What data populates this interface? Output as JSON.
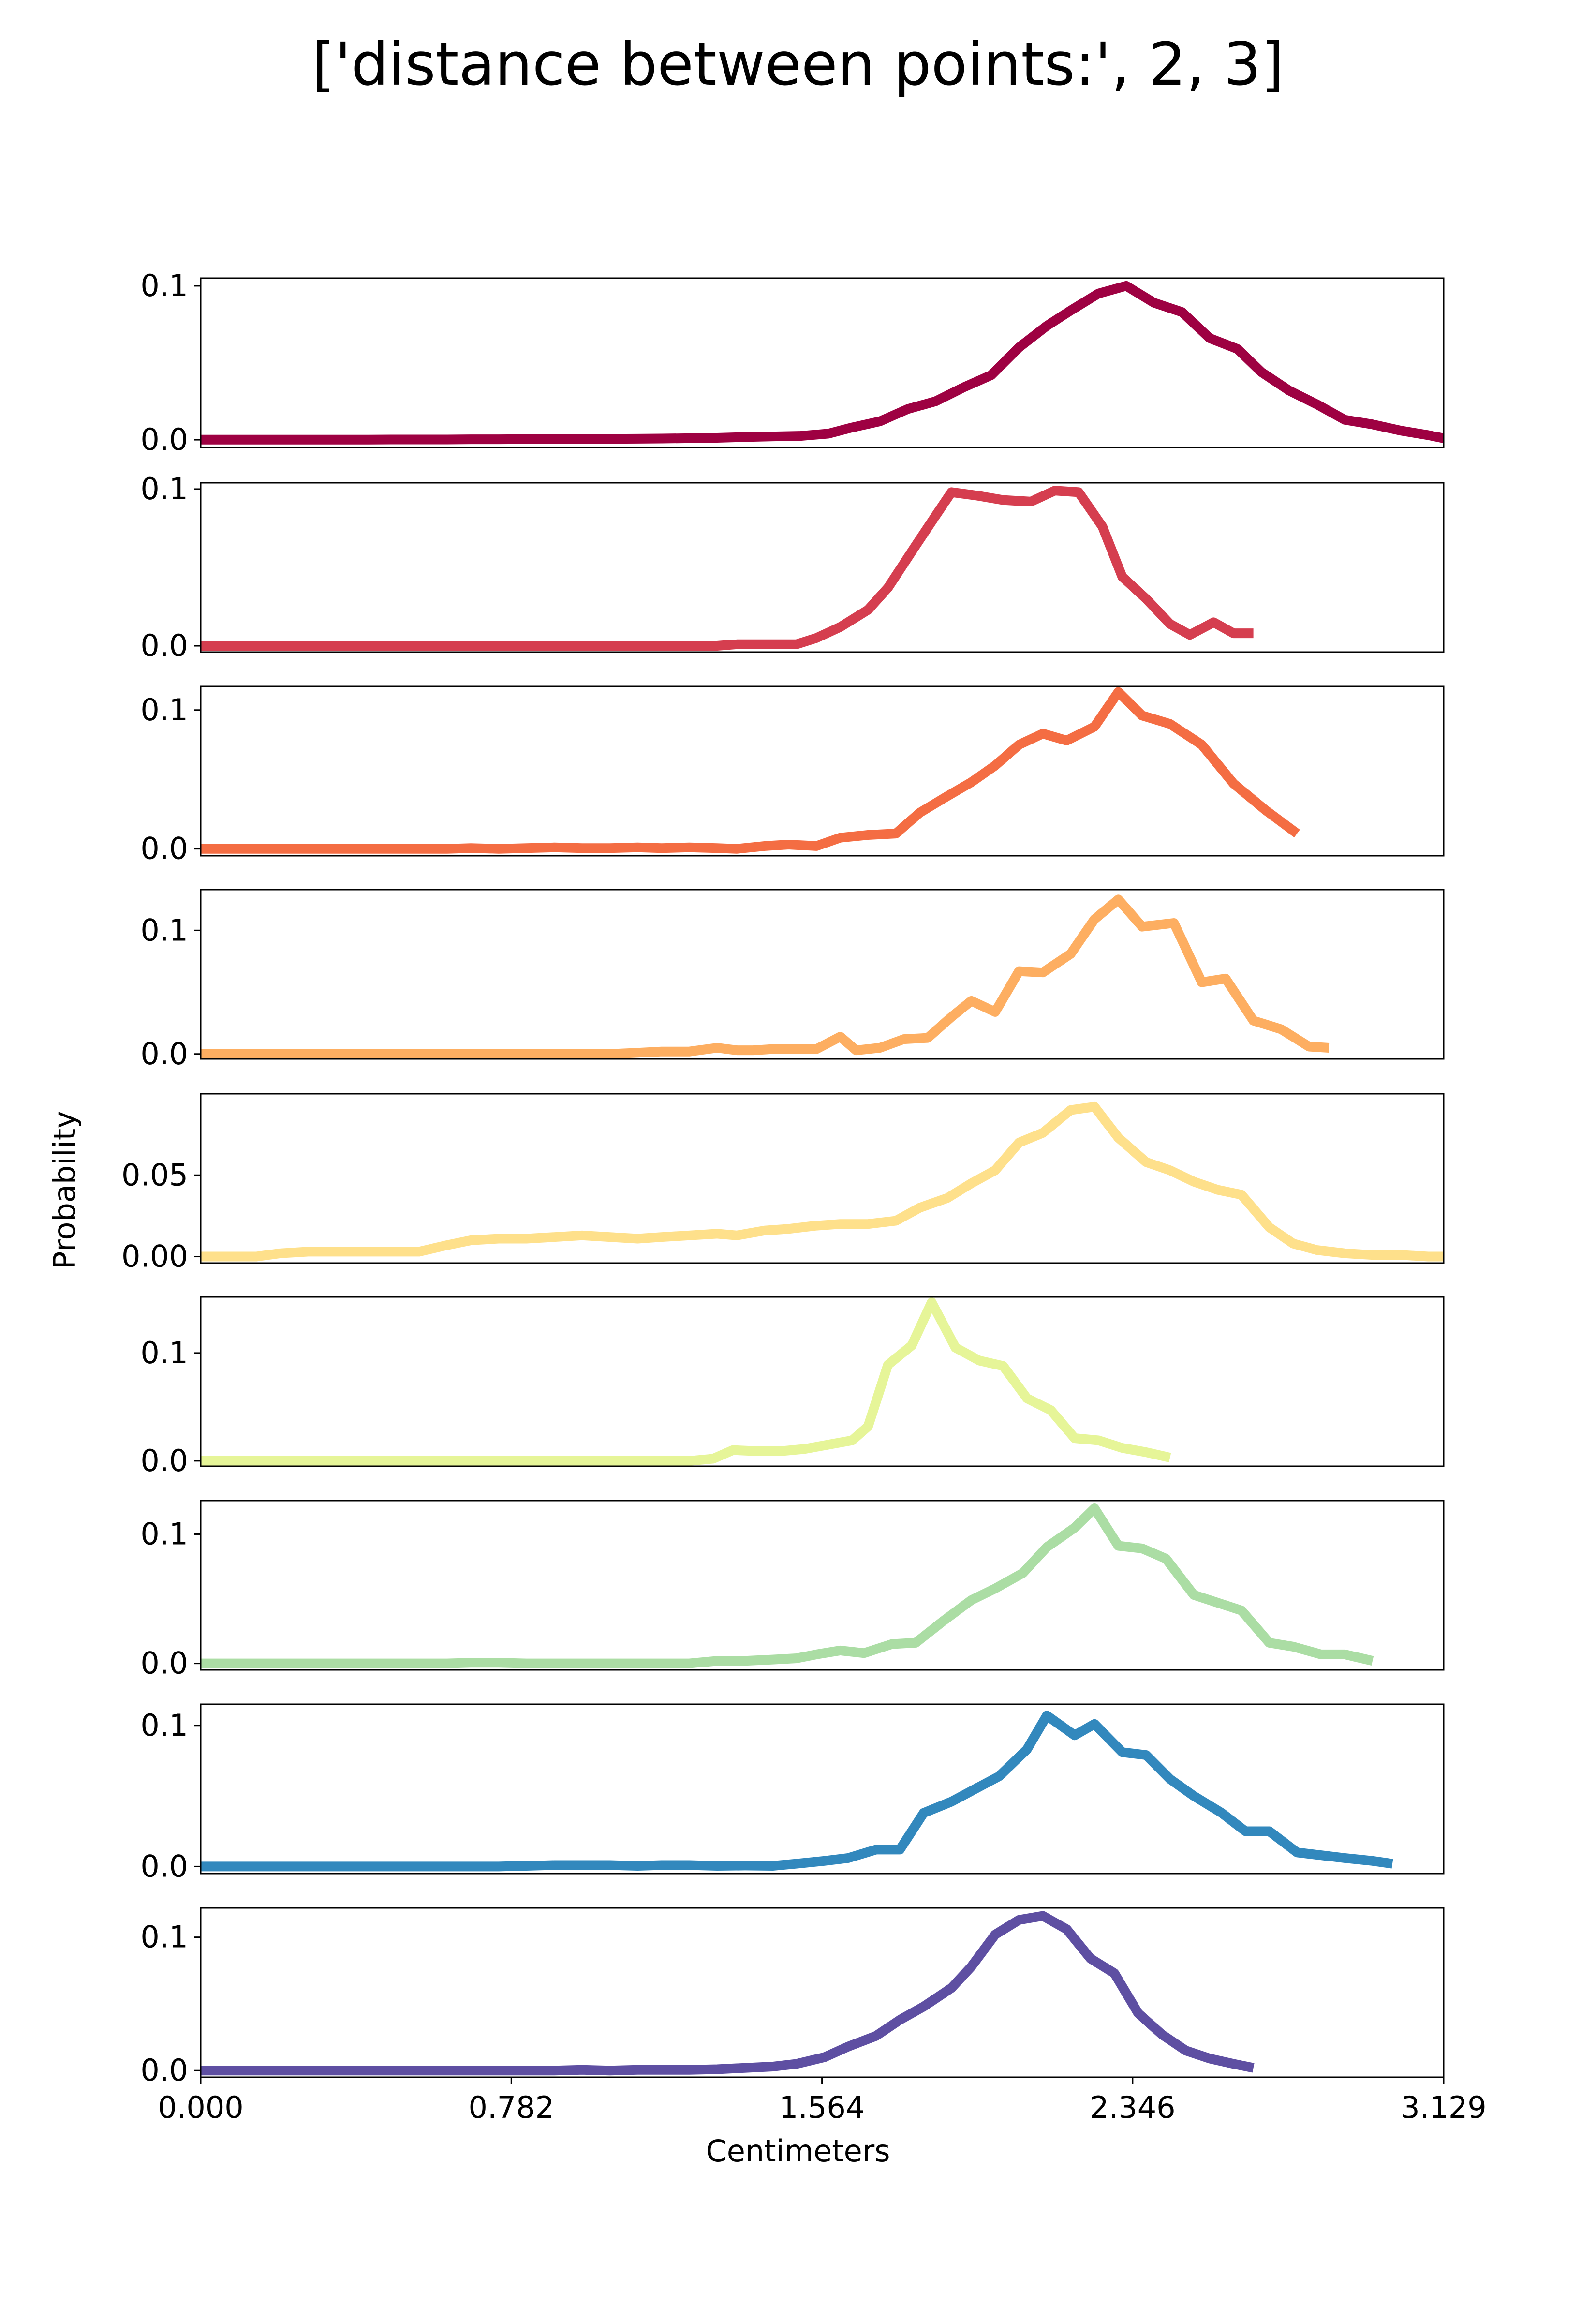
{
  "chart_data": {
    "type": "line",
    "title": "['distance between points:', 2, 3]",
    "xlabel": "Centimeters",
    "ylabel": "Probability",
    "xlim": [
      0,
      3.129
    ],
    "x_ticks": [
      "0.000",
      "0.782",
      "1.564",
      "2.346",
      "3.129"
    ],
    "grid": false,
    "panels": [
      {
        "color": "#9e0142",
        "ylim": [
          -0.005,
          0.105
        ],
        "y_ticks": [
          "0.0",
          "0.1"
        ],
        "x": [
          0,
          0.07,
          0.14,
          0.2,
          0.27,
          0.34,
          0.41,
          0.48,
          0.55,
          0.62,
          0.68,
          0.75,
          0.82,
          0.89,
          0.96,
          1.03,
          1.1,
          1.16,
          1.23,
          1.3,
          1.37,
          1.44,
          1.51,
          1.58,
          1.64,
          1.71,
          1.78,
          1.85,
          1.92,
          1.99,
          2.06,
          2.13,
          2.19,
          2.26,
          2.33,
          2.4,
          2.47,
          2.54,
          2.61,
          2.67,
          2.74,
          2.81,
          2.88,
          2.95,
          3.02,
          3.09,
          3.129
        ],
        "y": [
          0.0001,
          0.0001,
          0.0001,
          0.0001,
          0.0001,
          0.0001,
          0.0001,
          0.0002,
          0.0002,
          0.0002,
          0.0003,
          0.0003,
          0.0004,
          0.0005,
          0.0005,
          0.0006,
          0.0007,
          0.0008,
          0.001,
          0.0013,
          0.0018,
          0.0022,
          0.0025,
          0.004,
          0.008,
          0.012,
          0.02,
          0.025,
          0.034,
          0.042,
          0.06,
          0.074,
          0.084,
          0.095,
          0.1,
          0.089,
          0.083,
          0.066,
          0.059,
          0.044,
          0.032,
          0.023,
          0.013,
          0.01,
          0.006,
          0.003,
          0.001
        ]
      },
      {
        "color": "#d53e4f",
        "ylim": [
          -0.004,
          0.104
        ],
        "y_ticks": [
          "0.0",
          "0.1"
        ],
        "x": [
          0,
          0.07,
          0.14,
          0.2,
          0.27,
          0.34,
          0.41,
          0.48,
          0.55,
          0.62,
          0.68,
          0.75,
          0.82,
          0.89,
          0.96,
          1.03,
          1.1,
          1.16,
          1.23,
          1.3,
          1.35,
          1.42,
          1.5,
          1.55,
          1.61,
          1.68,
          1.73,
          1.8,
          1.85,
          1.89,
          1.95,
          2.02,
          2.09,
          2.15,
          2.21,
          2.27,
          2.32,
          2.38,
          2.44,
          2.49,
          2.55,
          2.6,
          2.65
        ],
        "y": [
          0,
          0,
          0,
          0,
          0,
          0,
          0,
          0,
          0,
          0,
          0,
          0,
          0,
          0,
          0,
          0,
          0,
          0,
          0,
          0,
          0.001,
          0.001,
          0.001,
          0.005,
          0.012,
          0.023,
          0.037,
          0.064,
          0.083,
          0.098,
          0.096,
          0.093,
          0.092,
          0.099,
          0.098,
          0.076,
          0.044,
          0.03,
          0.014,
          0.007,
          0.015,
          0.008,
          0.008
        ]
      },
      {
        "color": "#f46d43",
        "ylim": [
          -0.005,
          0.117
        ],
        "y_ticks": [
          "0.0",
          "0.1"
        ],
        "x": [
          0,
          0.07,
          0.14,
          0.2,
          0.27,
          0.34,
          0.41,
          0.48,
          0.55,
          0.62,
          0.68,
          0.75,
          0.82,
          0.89,
          0.96,
          1.03,
          1.1,
          1.16,
          1.23,
          1.3,
          1.35,
          1.42,
          1.48,
          1.55,
          1.61,
          1.68,
          1.75,
          1.81,
          1.88,
          1.94,
          2.0,
          2.06,
          2.12,
          2.18,
          2.25,
          2.31,
          2.37,
          2.44,
          2.52,
          2.6,
          2.68,
          2.76
        ],
        "y": [
          0,
          0,
          0,
          0,
          0,
          0,
          0,
          0,
          0,
          0,
          0.0005,
          0,
          0.0005,
          0.001,
          0.0005,
          0.0005,
          0.001,
          0.0005,
          0.001,
          0.0005,
          0,
          0.002,
          0.003,
          0.002,
          0.008,
          0.01,
          0.011,
          0.026,
          0.038,
          0.048,
          0.06,
          0.075,
          0.083,
          0.078,
          0.088,
          0.113,
          0.096,
          0.09,
          0.075,
          0.047,
          0.028,
          0.011
        ]
      },
      {
        "color": "#fdae61",
        "ylim": [
          -0.004,
          0.133
        ],
        "y_ticks": [
          "0.0",
          "0.1"
        ],
        "x": [
          0,
          0.07,
          0.14,
          0.2,
          0.27,
          0.34,
          0.41,
          0.48,
          0.55,
          0.62,
          0.68,
          0.75,
          0.82,
          0.89,
          0.96,
          1.03,
          1.1,
          1.16,
          1.23,
          1.3,
          1.35,
          1.39,
          1.44,
          1.48,
          1.55,
          1.61,
          1.65,
          1.71,
          1.77,
          1.83,
          1.89,
          1.94,
          2.0,
          2.06,
          2.12,
          2.19,
          2.25,
          2.31,
          2.37,
          2.45,
          2.52,
          2.58,
          2.65,
          2.72,
          2.79,
          2.84
        ],
        "y": [
          0,
          0,
          0,
          0,
          0,
          0,
          0,
          0,
          0,
          0,
          0,
          0,
          0,
          0,
          0,
          0,
          0.001,
          0.002,
          0.002,
          0.005,
          0.003,
          0.003,
          0.004,
          0.004,
          0.004,
          0.014,
          0.003,
          0.005,
          0.012,
          0.013,
          0.03,
          0.043,
          0.034,
          0.067,
          0.066,
          0.081,
          0.109,
          0.125,
          0.103,
          0.106,
          0.058,
          0.061,
          0.027,
          0.02,
          0.006,
          0.005
        ]
      },
      {
        "color": "#fee08b",
        "ylim": [
          -0.004,
          0.1
        ],
        "y_ticks": [
          "0.00",
          "0.05"
        ],
        "x": [
          0,
          0.07,
          0.14,
          0.2,
          0.27,
          0.34,
          0.41,
          0.48,
          0.55,
          0.62,
          0.68,
          0.75,
          0.82,
          0.89,
          0.96,
          1.03,
          1.1,
          1.16,
          1.23,
          1.3,
          1.35,
          1.42,
          1.48,
          1.55,
          1.61,
          1.68,
          1.75,
          1.81,
          1.88,
          1.94,
          2.0,
          2.06,
          2.12,
          2.19,
          2.25,
          2.31,
          2.38,
          2.44,
          2.5,
          2.56,
          2.62,
          2.69,
          2.75,
          2.81,
          2.88,
          2.95,
          3.02,
          3.09,
          3.129
        ],
        "y": [
          0,
          0,
          0,
          0.002,
          0.003,
          0.003,
          0.003,
          0.003,
          0.003,
          0.007,
          0.01,
          0.011,
          0.011,
          0.012,
          0.013,
          0.012,
          0.011,
          0.012,
          0.013,
          0.014,
          0.013,
          0.016,
          0.017,
          0.019,
          0.02,
          0.02,
          0.022,
          0.03,
          0.036,
          0.045,
          0.053,
          0.07,
          0.076,
          0.09,
          0.092,
          0.073,
          0.058,
          0.053,
          0.046,
          0.041,
          0.038,
          0.018,
          0.008,
          0.004,
          0.002,
          0.001,
          0.001,
          0,
          0
        ]
      },
      {
        "color": "#e6f598",
        "ylim": [
          -0.005,
          0.152
        ],
        "y_ticks": [
          "0.0",
          "0.1"
        ],
        "x": [
          0,
          0.07,
          0.14,
          0.2,
          0.27,
          0.34,
          0.41,
          0.48,
          0.55,
          0.62,
          0.68,
          0.75,
          0.82,
          0.89,
          0.96,
          1.03,
          1.1,
          1.16,
          1.23,
          1.29,
          1.34,
          1.4,
          1.46,
          1.52,
          1.58,
          1.64,
          1.68,
          1.73,
          1.79,
          1.84,
          1.9,
          1.96,
          2.02,
          2.08,
          2.14,
          2.2,
          2.26,
          2.32,
          2.38,
          2.44
        ],
        "y": [
          0,
          0,
          0,
          0,
          0,
          0,
          0,
          0,
          0,
          0,
          0,
          0,
          0,
          0,
          0,
          0,
          0,
          0,
          0,
          0.002,
          0.01,
          0.009,
          0.009,
          0.011,
          0.015,
          0.019,
          0.032,
          0.089,
          0.107,
          0.147,
          0.105,
          0.093,
          0.088,
          0.058,
          0.047,
          0.021,
          0.019,
          0.012,
          0.008,
          0.003
        ]
      },
      {
        "color": "#abdda4",
        "ylim": [
          -0.005,
          0.126
        ],
        "y_ticks": [
          "0.0",
          "0.1"
        ],
        "x": [
          0,
          0.07,
          0.14,
          0.2,
          0.27,
          0.34,
          0.41,
          0.48,
          0.55,
          0.62,
          0.68,
          0.75,
          0.82,
          0.89,
          0.96,
          1.03,
          1.1,
          1.16,
          1.23,
          1.3,
          1.37,
          1.44,
          1.5,
          1.55,
          1.61,
          1.67,
          1.74,
          1.8,
          1.87,
          1.94,
          2.0,
          2.07,
          2.13,
          2.2,
          2.25,
          2.31,
          2.37,
          2.43,
          2.5,
          2.56,
          2.62,
          2.69,
          2.75,
          2.82,
          2.88,
          2.95
        ],
        "y": [
          0,
          0,
          0,
          0,
          0,
          0,
          0,
          0,
          0,
          0,
          0.0005,
          0.0005,
          0,
          0,
          0,
          0,
          0,
          0,
          0,
          0.002,
          0.002,
          0.003,
          0.004,
          0.007,
          0.01,
          0.008,
          0.015,
          0.016,
          0.033,
          0.049,
          0.058,
          0.07,
          0.09,
          0.105,
          0.12,
          0.091,
          0.089,
          0.081,
          0.053,
          0.047,
          0.041,
          0.016,
          0.013,
          0.007,
          0.007,
          0.002
        ]
      },
      {
        "color": "#3288bd",
        "ylim": [
          -0.005,
          0.115
        ],
        "y_ticks": [
          "0.0",
          "0.1"
        ],
        "x": [
          0,
          0.07,
          0.14,
          0.2,
          0.27,
          0.34,
          0.41,
          0.48,
          0.55,
          0.62,
          0.68,
          0.75,
          0.82,
          0.89,
          0.96,
          1.03,
          1.1,
          1.16,
          1.23,
          1.3,
          1.37,
          1.44,
          1.5,
          1.57,
          1.63,
          1.7,
          1.76,
          1.82,
          1.89,
          1.95,
          2.01,
          2.08,
          2.13,
          2.2,
          2.25,
          2.32,
          2.38,
          2.44,
          2.5,
          2.57,
          2.63,
          2.69,
          2.76,
          2.82,
          2.88,
          2.95,
          3.0
        ],
        "y": [
          0,
          0,
          0,
          0,
          0,
          0,
          0,
          0,
          0,
          0,
          0,
          0,
          0.0005,
          0.001,
          0.001,
          0.001,
          0.0005,
          0.001,
          0.001,
          0.0005,
          0.0007,
          0.0005,
          0.002,
          0.004,
          0.006,
          0.012,
          0.012,
          0.038,
          0.046,
          0.055,
          0.064,
          0.083,
          0.107,
          0.093,
          0.101,
          0.081,
          0.079,
          0.062,
          0.05,
          0.038,
          0.025,
          0.025,
          0.01,
          0.008,
          0.006,
          0.004,
          0.002
        ]
      },
      {
        "color": "#5e4fa2",
        "ylim": [
          -0.005,
          0.122
        ],
        "y_ticks": [
          "0.0",
          "0.1"
        ],
        "x": [
          0,
          0.07,
          0.14,
          0.2,
          0.27,
          0.34,
          0.41,
          0.48,
          0.55,
          0.62,
          0.68,
          0.75,
          0.82,
          0.89,
          0.96,
          1.03,
          1.1,
          1.16,
          1.23,
          1.3,
          1.37,
          1.44,
          1.5,
          1.57,
          1.63,
          1.7,
          1.76,
          1.82,
          1.89,
          1.94,
          2.0,
          2.06,
          2.12,
          2.18,
          2.24,
          2.3,
          2.36,
          2.42,
          2.48,
          2.54,
          2.6,
          2.65
        ],
        "y": [
          0,
          0,
          0,
          0,
          0,
          0,
          0,
          0,
          0,
          0,
          0,
          0,
          0,
          0,
          0.0005,
          0,
          0.0005,
          0.0005,
          0.0005,
          0.001,
          0.002,
          0.003,
          0.005,
          0.01,
          0.018,
          0.026,
          0.038,
          0.048,
          0.062,
          0.078,
          0.102,
          0.113,
          0.116,
          0.106,
          0.084,
          0.073,
          0.043,
          0.027,
          0.015,
          0.009,
          0.005,
          0.002
        ]
      }
    ]
  }
}
